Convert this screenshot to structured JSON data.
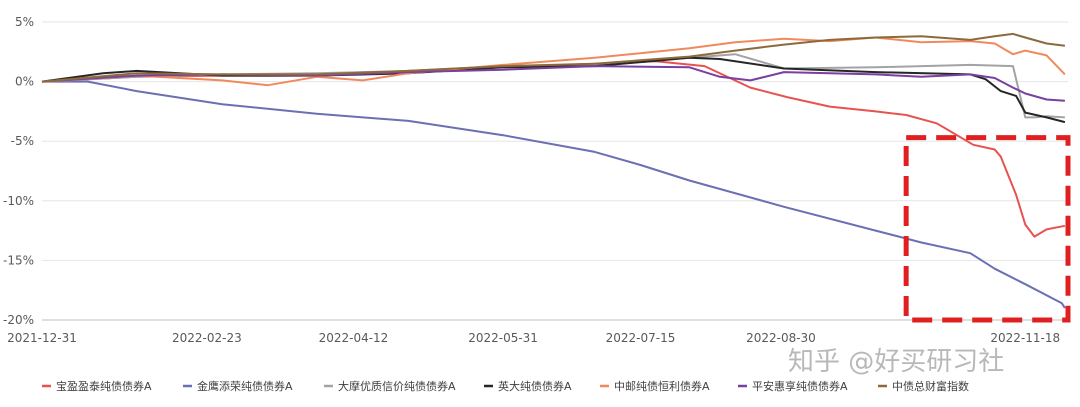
{
  "chart_data": {
    "type": "line",
    "title": "",
    "xlabel": "",
    "ylabel": "",
    "ylim": [
      -20,
      5
    ],
    "y_ticks": [
      {
        "value": 5,
        "label": "5%"
      },
      {
        "value": 0,
        "label": "0%"
      },
      {
        "value": -5,
        "label": "-5%"
      },
      {
        "value": -10,
        "label": "-10%"
      },
      {
        "value": -15,
        "label": "-15%"
      },
      {
        "value": -20,
        "label": "-20%"
      }
    ],
    "x_range": [
      "2021-12-31",
      "2022-12-02"
    ],
    "x_ticks": [
      "2021-12-31",
      "2022-02-23",
      "2022-04-12",
      "2022-05-31",
      "2022-07-15",
      "2022-08-30",
      "2022-11-18"
    ],
    "grid": "horizontal",
    "legend_position": "bottom",
    "series": [
      {
        "name": "宝盈盈泰纯债债券A",
        "color": "#e8524f",
        "points": [
          [
            "2021-12-31",
            0
          ],
          [
            "2022-01-31",
            0.4
          ],
          [
            "2022-02-28",
            0.5
          ],
          [
            "2022-03-31",
            0.5
          ],
          [
            "2022-04-30",
            0.9
          ],
          [
            "2022-05-31",
            1.2
          ],
          [
            "2022-06-30",
            1.5
          ],
          [
            "2022-07-20",
            1.7
          ],
          [
            "2022-08-05",
            1.3
          ],
          [
            "2022-08-20",
            -0.5
          ],
          [
            "2022-09-01",
            -1.3
          ],
          [
            "2022-09-15",
            -2.1
          ],
          [
            "2022-09-30",
            -2.5
          ],
          [
            "2022-10-10",
            -2.8
          ],
          [
            "2022-10-20",
            -3.5
          ],
          [
            "2022-11-01",
            -5.3
          ],
          [
            "2022-11-08",
            -5.7
          ],
          [
            "2022-11-10",
            -6.3
          ],
          [
            "2022-11-15",
            -9.5
          ],
          [
            "2022-11-18",
            -12.0
          ],
          [
            "2022-11-21",
            -13.0
          ],
          [
            "2022-11-25",
            -12.4
          ],
          [
            "2022-12-01",
            -12.1
          ]
        ]
      },
      {
        "name": "金鹰添荣纯债债券A",
        "color": "#6b6fb3",
        "points": [
          [
            "2021-12-31",
            0
          ],
          [
            "2022-01-15",
            0
          ],
          [
            "2022-01-31",
            -0.8
          ],
          [
            "2022-02-28",
            -1.9
          ],
          [
            "2022-03-31",
            -2.7
          ],
          [
            "2022-04-30",
            -3.3
          ],
          [
            "2022-05-31",
            -4.5
          ],
          [
            "2022-06-30",
            -5.9
          ],
          [
            "2022-07-15",
            -7.0
          ],
          [
            "2022-07-31",
            -8.3
          ],
          [
            "2022-08-31",
            -10.5
          ],
          [
            "2022-09-30",
            -12.5
          ],
          [
            "2022-10-15",
            -13.5
          ],
          [
            "2022-10-31",
            -14.4
          ],
          [
            "2022-11-08",
            -15.7
          ],
          [
            "2022-11-18",
            -17.0
          ],
          [
            "2022-11-30",
            -18.6
          ],
          [
            "2022-12-01",
            -19.0
          ]
        ]
      },
      {
        "name": "大摩优质信价纯债债券A",
        "color": "#a3a3a3",
        "points": [
          [
            "2021-12-31",
            0
          ],
          [
            "2022-01-31",
            0.4
          ],
          [
            "2022-02-28",
            0.6
          ],
          [
            "2022-03-31",
            0.7
          ],
          [
            "2022-04-30",
            0.9
          ],
          [
            "2022-05-31",
            1.3
          ],
          [
            "2022-06-30",
            1.4
          ],
          [
            "2022-07-31",
            2.0
          ],
          [
            "2022-08-15",
            2.3
          ],
          [
            "2022-08-31",
            1.1
          ],
          [
            "2022-09-30",
            1.2
          ],
          [
            "2022-10-31",
            1.4
          ],
          [
            "2022-11-14",
            1.3
          ],
          [
            "2022-11-18",
            -3.0
          ],
          [
            "2022-11-21",
            -3.0
          ],
          [
            "2022-11-25",
            -2.9
          ],
          [
            "2022-12-01",
            -3.0
          ]
        ]
      },
      {
        "name": "英大纯债债券A",
        "color": "#262626",
        "points": [
          [
            "2021-12-31",
            0
          ],
          [
            "2022-01-20",
            0.7
          ],
          [
            "2022-01-31",
            0.9
          ],
          [
            "2022-02-28",
            0.5
          ],
          [
            "2022-03-31",
            0.5
          ],
          [
            "2022-04-30",
            0.7
          ],
          [
            "2022-05-31",
            1.2
          ],
          [
            "2022-06-30",
            1.3
          ],
          [
            "2022-07-31",
            2.0
          ],
          [
            "2022-08-10",
            1.9
          ],
          [
            "2022-08-31",
            1.1
          ],
          [
            "2022-09-30",
            0.8
          ],
          [
            "2022-10-31",
            0.6
          ],
          [
            "2022-11-05",
            0.2
          ],
          [
            "2022-11-10",
            -0.8
          ],
          [
            "2022-11-15",
            -1.2
          ],
          [
            "2022-11-18",
            -2.6
          ],
          [
            "2022-11-25",
            -3.0
          ],
          [
            "2022-12-01",
            -3.4
          ]
        ]
      },
      {
        "name": "中邮纯债恒利债券A",
        "color": "#f08a5d",
        "points": [
          [
            "2021-12-31",
            0
          ],
          [
            "2022-01-31",
            0.5
          ],
          [
            "2022-02-28",
            0.1
          ],
          [
            "2022-03-15",
            -0.3
          ],
          [
            "2022-03-31",
            0.4
          ],
          [
            "2022-04-15",
            0.1
          ],
          [
            "2022-04-30",
            0.7
          ],
          [
            "2022-05-31",
            1.4
          ],
          [
            "2022-06-30",
            2.0
          ],
          [
            "2022-07-31",
            2.8
          ],
          [
            "2022-08-15",
            3.3
          ],
          [
            "2022-08-31",
            3.6
          ],
          [
            "2022-09-15",
            3.4
          ],
          [
            "2022-09-30",
            3.7
          ],
          [
            "2022-10-15",
            3.3
          ],
          [
            "2022-10-31",
            3.4
          ],
          [
            "2022-11-08",
            3.2
          ],
          [
            "2022-11-14",
            2.3
          ],
          [
            "2022-11-18",
            2.6
          ],
          [
            "2022-11-25",
            2.2
          ],
          [
            "2022-12-01",
            0.6
          ]
        ]
      },
      {
        "name": "平安惠享纯债债券A",
        "color": "#7a3fa0",
        "points": [
          [
            "2021-12-31",
            0
          ],
          [
            "2022-01-31",
            0.5
          ],
          [
            "2022-02-28",
            0.6
          ],
          [
            "2022-03-31",
            0.5
          ],
          [
            "2022-04-30",
            0.8
          ],
          [
            "2022-05-31",
            1.0
          ],
          [
            "2022-06-30",
            1.3
          ],
          [
            "2022-07-31",
            1.2
          ],
          [
            "2022-08-10",
            0.4
          ],
          [
            "2022-08-20",
            0.1
          ],
          [
            "2022-08-31",
            0.8
          ],
          [
            "2022-09-30",
            0.6
          ],
          [
            "2022-10-15",
            0.4
          ],
          [
            "2022-10-31",
            0.6
          ],
          [
            "2022-11-08",
            0.3
          ],
          [
            "2022-11-14",
            -0.5
          ],
          [
            "2022-11-18",
            -1.0
          ],
          [
            "2022-11-25",
            -1.5
          ],
          [
            "2022-12-01",
            -1.6
          ]
        ]
      },
      {
        "name": "中债总财富指数",
        "color": "#8d6a3b",
        "points": [
          [
            "2021-12-31",
            0
          ],
          [
            "2022-01-31",
            0.7
          ],
          [
            "2022-02-28",
            0.6
          ],
          [
            "2022-03-31",
            0.6
          ],
          [
            "2022-04-30",
            0.9
          ],
          [
            "2022-05-31",
            1.3
          ],
          [
            "2022-06-30",
            1.5
          ],
          [
            "2022-07-31",
            2.1
          ],
          [
            "2022-08-15",
            2.6
          ],
          [
            "2022-08-31",
            3.1
          ],
          [
            "2022-09-15",
            3.5
          ],
          [
            "2022-09-30",
            3.7
          ],
          [
            "2022-10-15",
            3.8
          ],
          [
            "2022-10-31",
            3.5
          ],
          [
            "2022-11-08",
            3.8
          ],
          [
            "2022-11-14",
            4.0
          ],
          [
            "2022-11-18",
            3.7
          ],
          [
            "2022-11-25",
            3.2
          ],
          [
            "2022-12-01",
            3.0
          ]
        ]
      }
    ],
    "annotations": [
      {
        "type": "dashed-box",
        "color": "#e02020",
        "x0": "2022-10-10",
        "x1": "2022-12-02",
        "y0": -20,
        "y1": -4.7
      }
    ]
  },
  "watermark": "知乎 @好买研习社"
}
